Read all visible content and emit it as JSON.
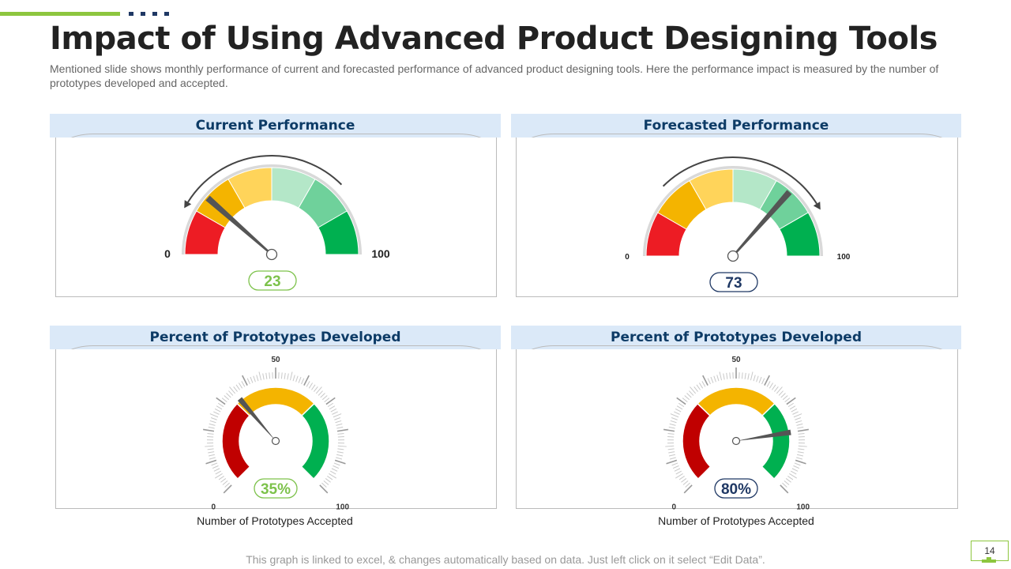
{
  "title": "Impact of Using Advanced Product Designing Tools",
  "subtitle": "Mentioned  slide shows monthly performance of current and forecasted performance of advanced product designing tools. Here the performance impact is measured by the number of prototypes developed  and accepted.",
  "colors": {
    "accent_green": "#8dc63f",
    "navy": "#1f3864",
    "header_bg": "#dbe9f8"
  },
  "panels": [
    {
      "title": "Current Performance",
      "min_label": "0",
      "max_label": "100",
      "value_label": "23",
      "value": 23,
      "badge_color": "#7dc24b",
      "arrow_direction": "counterclockwise"
    },
    {
      "title": "Forecasted Performance",
      "min_label": "0",
      "max_label": "100",
      "value_label": "73",
      "value": 73,
      "badge_color": "#1f3864",
      "arrow_direction": "clockwise"
    },
    {
      "title": "Percent of Prototypes Developed",
      "min_label": "0",
      "mid_label": "50",
      "max_label": "100",
      "value_label": "35%",
      "value": 35,
      "badge_color": "#7dc24b",
      "caption": "Number of Prototypes Accepted"
    },
    {
      "title": "Percent of Prototypes Developed",
      "min_label": "0",
      "mid_label": "50",
      "max_label": "100",
      "value_label": "80%",
      "value": 80,
      "badge_color": "#1f3864",
      "caption": "Number of Prototypes Accepted"
    }
  ],
  "footer": "This graph is linked to excel, & changes automatically based on data. Just left click on it select “Edit Data”.",
  "page_number": "14"
}
